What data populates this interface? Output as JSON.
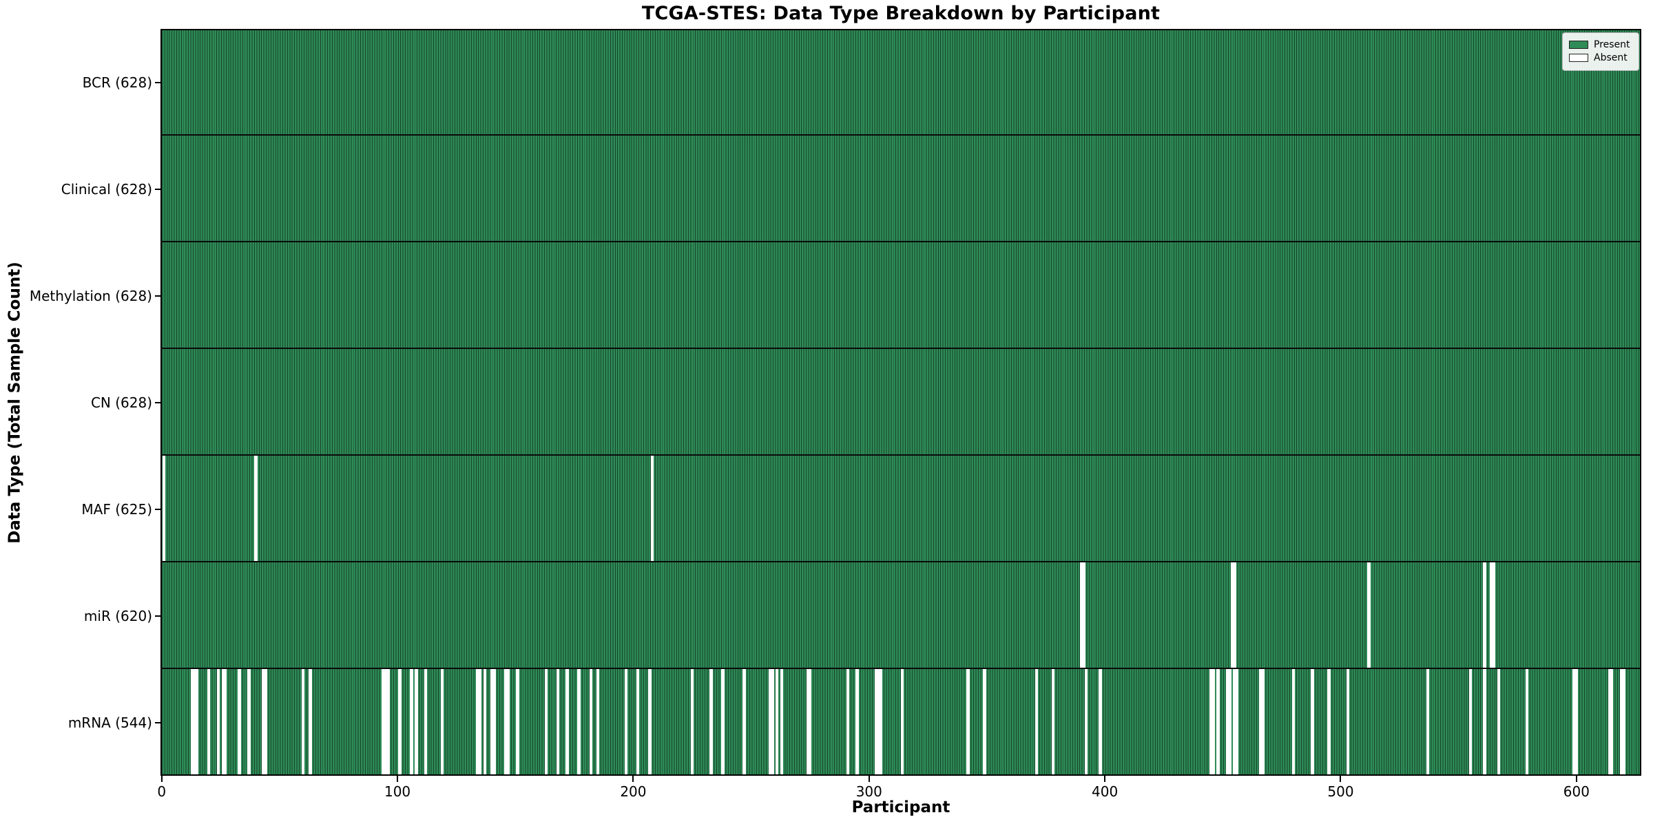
{
  "figure": {
    "title": "TCGA-STES: Data Type Breakdown by Participant",
    "xlabel": "Participant",
    "ylabel": "Data Type (Total Sample Count)"
  },
  "legend": {
    "items": [
      {
        "label": "Present",
        "color": "#2e8b57"
      },
      {
        "label": "Absent",
        "color": "#ffffff"
      }
    ]
  },
  "colors": {
    "present_fill": "#2e8b57",
    "bar_edge": "#17432a",
    "absent_fill": "#ffffff",
    "frame": "#000000",
    "background": "#ffffff"
  },
  "chart_data": {
    "type": "heatmap",
    "title": "TCGA-STES: Data Type Breakdown by Participant",
    "xlabel": "Participant",
    "ylabel": "Data Type (Total Sample Count)",
    "x_ticks": [
      0,
      100,
      200,
      300,
      400,
      500,
      600
    ],
    "x_range": [
      0,
      628
    ],
    "n_participants": 628,
    "legend": [
      "Present",
      "Absent"
    ],
    "legend_position": "upper right",
    "grid": false,
    "rows": [
      {
        "label": "BCR (628)",
        "name": "BCR",
        "present_count": 628,
        "absent_participants": []
      },
      {
        "label": "Clinical (628)",
        "name": "Clinical",
        "present_count": 628,
        "absent_participants": []
      },
      {
        "label": "Methylation (628)",
        "name": "Methylation",
        "present_count": 628,
        "absent_participants": []
      },
      {
        "label": "CN (628)",
        "name": "CN",
        "present_count": 628,
        "absent_participants": []
      },
      {
        "label": "MAF (625)",
        "name": "MAF",
        "present_count": 625,
        "absent_participants": [
          1,
          40,
          208
        ]
      },
      {
        "label": "miR (620)",
        "name": "miR",
        "present_count": 620,
        "absent_participants": [
          390,
          391,
          454,
          455,
          512,
          561,
          564,
          565
        ]
      },
      {
        "label": "mRNA (544)",
        "name": "mRNA",
        "present_count": 544,
        "absent_participants": [
          13,
          14,
          15,
          20,
          24,
          26,
          27,
          33,
          37,
          43,
          44,
          60,
          63,
          94,
          95,
          96,
          101,
          106,
          108,
          112,
          119,
          134,
          135,
          137,
          140,
          141,
          146,
          147,
          151,
          163,
          168,
          172,
          177,
          182,
          185,
          197,
          202,
          207,
          225,
          233,
          238,
          247,
          258,
          259,
          261,
          263,
          274,
          275,
          291,
          295,
          303,
          304,
          305,
          314,
          342,
          349,
          371,
          378,
          392,
          398,
          445,
          446,
          448,
          452,
          453,
          455,
          456,
          466,
          467,
          480,
          488,
          495,
          503,
          537,
          555,
          561,
          567,
          579,
          599,
          600,
          614,
          615,
          619,
          620
        ]
      }
    ]
  }
}
